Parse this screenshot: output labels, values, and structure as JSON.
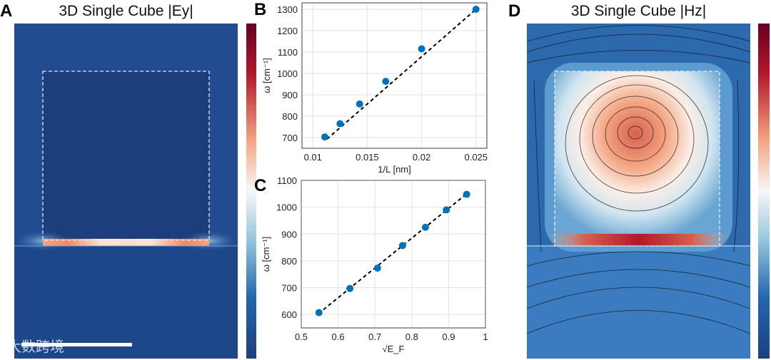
{
  "panels": {
    "a": {
      "label": "A",
      "title": "3D Single Cube |Ey|"
    },
    "b": {
      "label": "B"
    },
    "c": {
      "label": "C"
    },
    "d": {
      "label": "D",
      "title": "3D Single Cube |Hz|"
    }
  },
  "watermark": "大数跨境",
  "colors": {
    "marker": "#0072BD",
    "fit": "#000000",
    "field_low": "#1d3f80",
    "field_high": "#b2182b"
  },
  "chart_data": [
    {
      "type": "scatter",
      "panel": "B",
      "xlabel": "1/L [nm]",
      "ylabel": "ω [cm⁻¹]",
      "xlim": [
        0.009,
        0.026
      ],
      "ylim": [
        650,
        1330
      ],
      "xticks": [
        0.01,
        0.015,
        0.02,
        0.025
      ],
      "xtick_labels": [
        "0.01",
        "0.015",
        "0.02",
        "0.025"
      ],
      "yticks": [
        700,
        800,
        900,
        1000,
        1100,
        1200,
        1300
      ],
      "ytick_labels": [
        "700",
        "800",
        "900",
        "1000",
        "1100",
        "1200",
        "1300"
      ],
      "grid": true,
      "x": [
        0.0111,
        0.0125,
        0.0143,
        0.0167,
        0.02,
        0.025
      ],
      "y": [
        703,
        765,
        857,
        963,
        1115,
        1300
      ],
      "fit": {
        "style": "dashed",
        "x": [
          0.0113,
          0.025
        ],
        "y": [
          693,
          1300
        ]
      }
    },
    {
      "type": "scatter",
      "panel": "C",
      "xlabel": "√E_F",
      "ylabel": "ω [cm⁻¹]",
      "xlim": [
        0.5,
        1
      ],
      "ylim": [
        550,
        1100
      ],
      "xticks": [
        0.5,
        0.6,
        0.7,
        0.8,
        0.9,
        1
      ],
      "xtick_labels": [
        "0.5",
        "0.6",
        "0.7",
        "0.8",
        "0.9",
        "1"
      ],
      "yticks": [
        600,
        700,
        800,
        900,
        1000,
        1100
      ],
      "ytick_labels": [
        "600",
        "700",
        "800",
        "900",
        "1000",
        "1100"
      ],
      "grid": true,
      "x": [
        0.548,
        0.632,
        0.707,
        0.775,
        0.837,
        0.894,
        0.949
      ],
      "y": [
        607,
        697,
        773,
        857,
        925,
        990,
        1048
      ],
      "fit": {
        "style": "dashed",
        "x": [
          0.56,
          0.949
        ],
        "y": [
          618,
          1050
        ]
      }
    }
  ]
}
